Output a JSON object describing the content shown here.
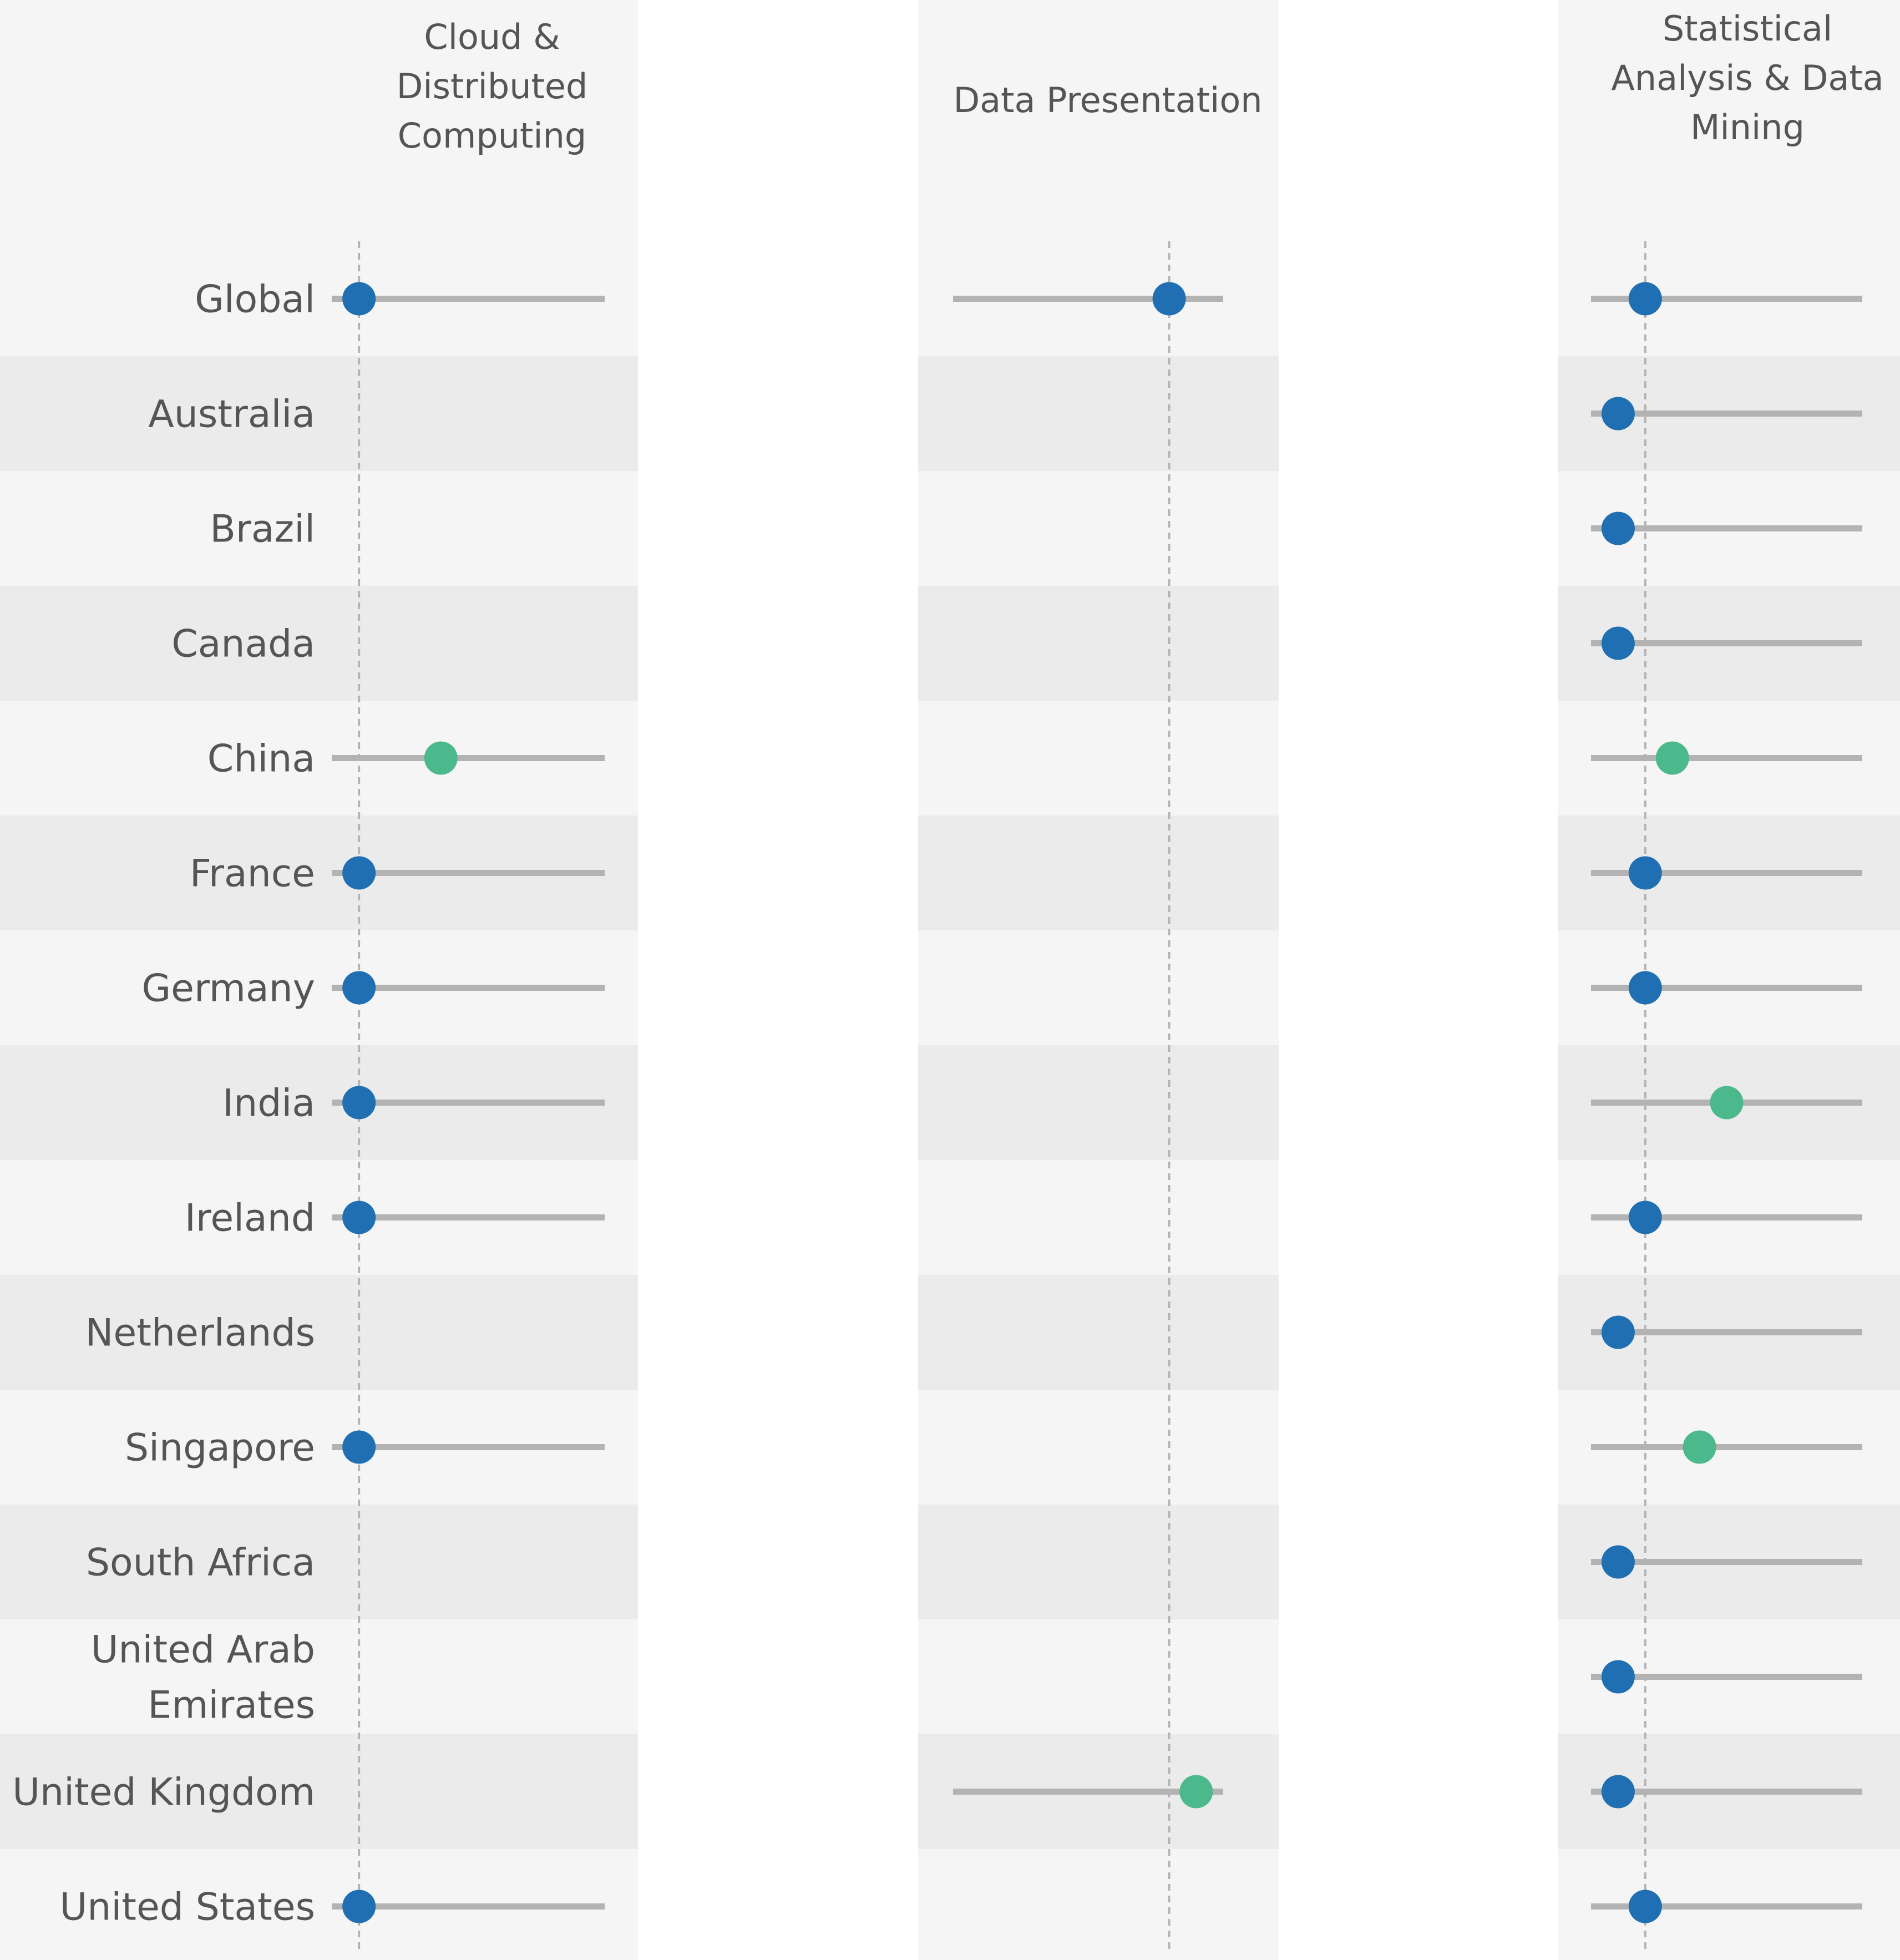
{
  "chart_data": {
    "type": "dot-range",
    "rows": [
      "Global",
      "Australia",
      "Brazil",
      "Canada",
      "China",
      "France",
      "Germany",
      "India",
      "Ireland",
      "Netherlands",
      "Singapore",
      "South Africa",
      "United Arab Emirates",
      "United Kingdom",
      "United States"
    ],
    "row_label_lines": [
      [
        "Global"
      ],
      [
        "Australia"
      ],
      [
        "Brazil"
      ],
      [
        "Canada"
      ],
      [
        "China"
      ],
      [
        "France"
      ],
      [
        "Germany"
      ],
      [
        "India"
      ],
      [
        "Ireland"
      ],
      [
        "Netherlands"
      ],
      [
        "Singapore"
      ],
      [
        "South Africa"
      ],
      [
        "United Arab",
        "Emirates"
      ],
      [
        "United Kingdom"
      ],
      [
        "United States"
      ]
    ],
    "colors": {
      "at_global": "#1f6fb2",
      "above_global": "#4cb98c",
      "range_line": "#b3b3b3",
      "reference_line": "#b3b3b3",
      "band_light": "#f5f5f5",
      "band_dark": "#ebebeb"
    },
    "panels": [
      {
        "title_lines": [
          "Cloud &",
          "Distributed",
          "Computing"
        ],
        "reference": 0.1,
        "points": [
          {
            "row": "Global",
            "value": 0.1,
            "range": [
              0.0,
              1.0
            ],
            "status": "at_global"
          },
          {
            "row": "China",
            "value": 0.4,
            "range": [
              0.0,
              1.0
            ],
            "status": "above_global"
          },
          {
            "row": "France",
            "value": 0.1,
            "range": [
              0.0,
              1.0
            ],
            "status": "at_global"
          },
          {
            "row": "Germany",
            "value": 0.1,
            "range": [
              0.0,
              1.0
            ],
            "status": "at_global"
          },
          {
            "row": "India",
            "value": 0.1,
            "range": [
              0.0,
              1.0
            ],
            "status": "at_global"
          },
          {
            "row": "Ireland",
            "value": 0.1,
            "range": [
              0.0,
              1.0
            ],
            "status": "at_global"
          },
          {
            "row": "Singapore",
            "value": 0.1,
            "range": [
              0.0,
              1.0
            ],
            "status": "at_global"
          },
          {
            "row": "United States",
            "value": 0.1,
            "range": [
              0.0,
              1.0
            ],
            "status": "at_global"
          }
        ]
      },
      {
        "title_lines": [
          "Data Presentation"
        ],
        "reference": 0.8,
        "points": [
          {
            "row": "Global",
            "value": 0.8,
            "range": [
              0.0,
              1.0
            ],
            "status": "at_global"
          },
          {
            "row": "United Kingdom",
            "value": 0.9,
            "range": [
              0.0,
              1.0
            ],
            "status": "above_global"
          }
        ]
      },
      {
        "title_lines": [
          "Statistical",
          "Analysis & Data",
          "Mining"
        ],
        "reference": 0.2,
        "points": [
          {
            "row": "Global",
            "value": 0.2,
            "range": [
              0.0,
              1.0
            ],
            "status": "at_global"
          },
          {
            "row": "Australia",
            "value": 0.1,
            "range": [
              0.0,
              1.0
            ],
            "status": "at_global"
          },
          {
            "row": "Brazil",
            "value": 0.1,
            "range": [
              0.0,
              1.0
            ],
            "status": "at_global"
          },
          {
            "row": "Canada",
            "value": 0.1,
            "range": [
              0.0,
              1.0
            ],
            "status": "at_global"
          },
          {
            "row": "China",
            "value": 0.3,
            "range": [
              0.0,
              1.0
            ],
            "status": "above_global"
          },
          {
            "row": "France",
            "value": 0.2,
            "range": [
              0.0,
              1.0
            ],
            "status": "at_global"
          },
          {
            "row": "Germany",
            "value": 0.2,
            "range": [
              0.0,
              1.0
            ],
            "status": "at_global"
          },
          {
            "row": "India",
            "value": 0.5,
            "range": [
              0.0,
              1.0
            ],
            "status": "above_global"
          },
          {
            "row": "Ireland",
            "value": 0.2,
            "range": [
              0.0,
              1.0
            ],
            "status": "at_global"
          },
          {
            "row": "Netherlands",
            "value": 0.1,
            "range": [
              0.0,
              1.0
            ],
            "status": "at_global"
          },
          {
            "row": "Singapore",
            "value": 0.4,
            "range": [
              0.0,
              1.0
            ],
            "status": "above_global"
          },
          {
            "row": "South Africa",
            "value": 0.1,
            "range": [
              0.0,
              1.0
            ],
            "status": "at_global"
          },
          {
            "row": "United Arab Emirates",
            "value": 0.1,
            "range": [
              0.0,
              1.0
            ],
            "status": "at_global"
          },
          {
            "row": "United Kingdom",
            "value": 0.1,
            "range": [
              0.0,
              1.0
            ],
            "status": "at_global"
          },
          {
            "row": "United States",
            "value": 0.2,
            "range": [
              0.0,
              1.0
            ],
            "status": "at_global"
          }
        ]
      }
    ]
  }
}
